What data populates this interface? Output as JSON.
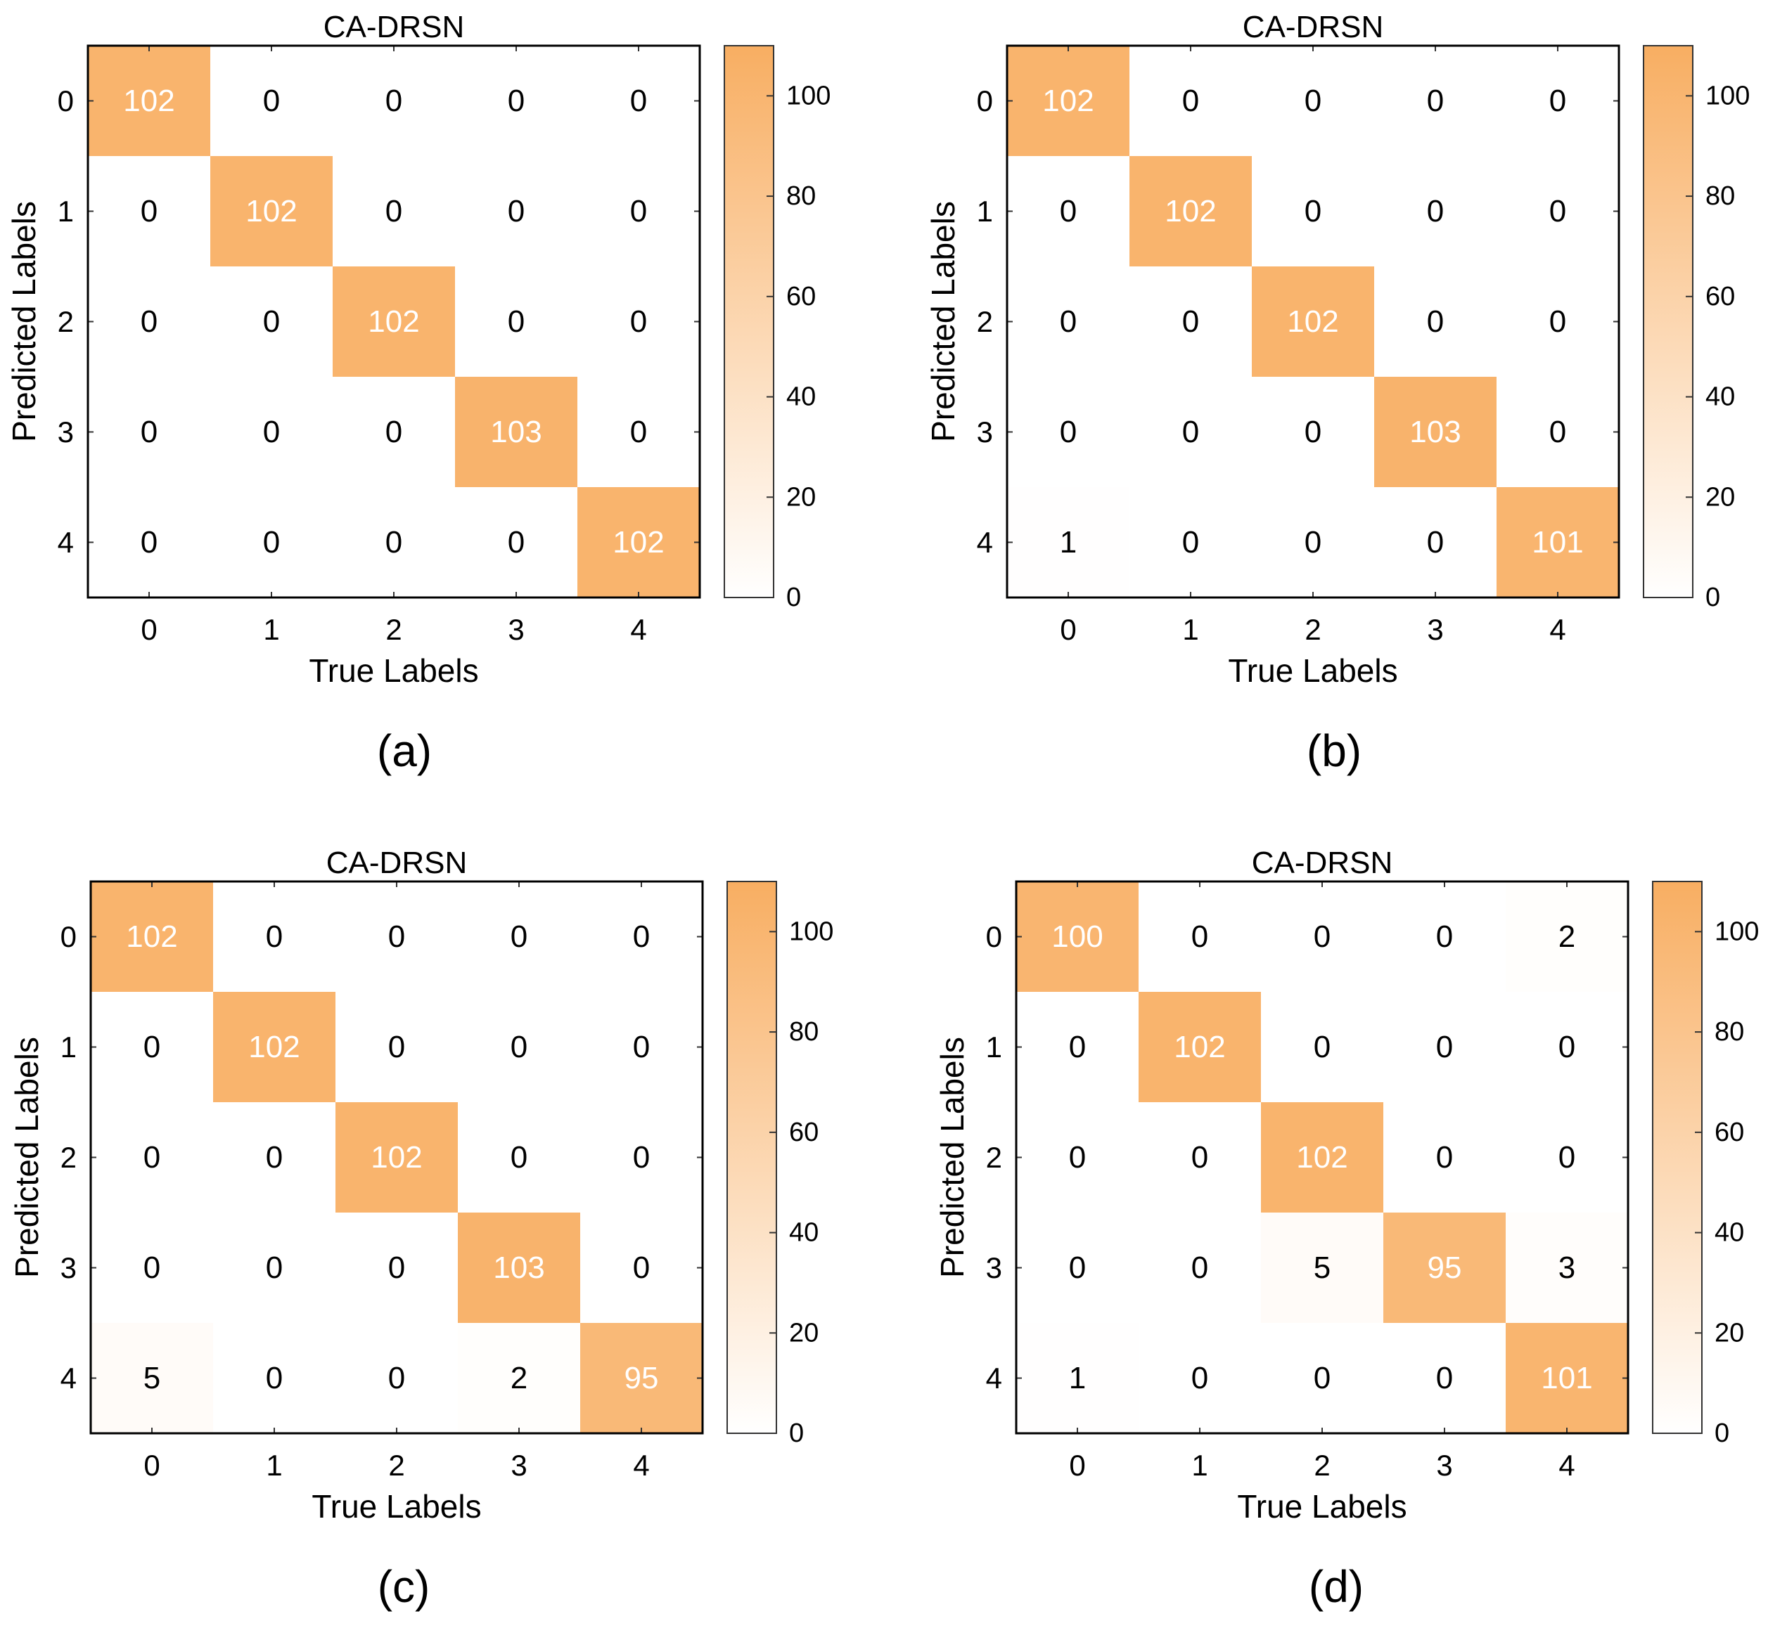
{
  "colors": {
    "low": "#ffffff",
    "high": "#f8ae62",
    "axis": "#000000",
    "tick": "#333333"
  },
  "chart_data": [
    {
      "type": "heatmap",
      "panel_label": "(a)",
      "title": "CA-DRSN",
      "xlabel": "True Labels",
      "ylabel": "Predicted Labels",
      "x_ticks": [
        "0",
        "1",
        "2",
        "3",
        "4"
      ],
      "y_ticks": [
        "0",
        "1",
        "2",
        "3",
        "4"
      ],
      "matrix": [
        [
          102,
          0,
          0,
          0,
          0
        ],
        [
          0,
          102,
          0,
          0,
          0
        ],
        [
          0,
          0,
          102,
          0,
          0
        ],
        [
          0,
          0,
          0,
          103,
          0
        ],
        [
          0,
          0,
          0,
          0,
          102
        ]
      ],
      "colorbar": {
        "min": 0,
        "max": 110,
        "ticks": [
          "0",
          "20",
          "40",
          "60",
          "80",
          "100"
        ]
      }
    },
    {
      "type": "heatmap",
      "panel_label": "(b)",
      "title": "CA-DRSN",
      "xlabel": "True Labels",
      "ylabel": "Predicted Labels",
      "x_ticks": [
        "0",
        "1",
        "2",
        "3",
        "4"
      ],
      "y_ticks": [
        "0",
        "1",
        "2",
        "3",
        "4"
      ],
      "matrix": [
        [
          102,
          0,
          0,
          0,
          0
        ],
        [
          0,
          102,
          0,
          0,
          0
        ],
        [
          0,
          0,
          102,
          0,
          0
        ],
        [
          0,
          0,
          0,
          103,
          0
        ],
        [
          1,
          0,
          0,
          0,
          101
        ]
      ],
      "colorbar": {
        "min": 0,
        "max": 110,
        "ticks": [
          "0",
          "20",
          "40",
          "60",
          "80",
          "100"
        ]
      }
    },
    {
      "type": "heatmap",
      "panel_label": "(c)",
      "title": "CA-DRSN",
      "xlabel": "True Labels",
      "ylabel": "Predicted Labels",
      "x_ticks": [
        "0",
        "1",
        "2",
        "3",
        "4"
      ],
      "y_ticks": [
        "0",
        "1",
        "2",
        "3",
        "4"
      ],
      "matrix": [
        [
          102,
          0,
          0,
          0,
          0
        ],
        [
          0,
          102,
          0,
          0,
          0
        ],
        [
          0,
          0,
          102,
          0,
          0
        ],
        [
          0,
          0,
          0,
          103,
          0
        ],
        [
          5,
          0,
          0,
          2,
          95
        ]
      ],
      "colorbar": {
        "min": 0,
        "max": 110,
        "ticks": [
          "0",
          "20",
          "40",
          "60",
          "80",
          "100"
        ]
      }
    },
    {
      "type": "heatmap",
      "panel_label": "(d)",
      "title": "CA-DRSN",
      "xlabel": "True Labels",
      "ylabel": "Predicted Labels",
      "x_ticks": [
        "0",
        "1",
        "2",
        "3",
        "4"
      ],
      "y_ticks": [
        "0",
        "1",
        "2",
        "3",
        "4"
      ],
      "matrix": [
        [
          100,
          0,
          0,
          0,
          2
        ],
        [
          0,
          102,
          0,
          0,
          0
        ],
        [
          0,
          0,
          102,
          0,
          0
        ],
        [
          0,
          0,
          5,
          95,
          3
        ],
        [
          1,
          0,
          0,
          0,
          101
        ]
      ],
      "colorbar": {
        "min": 0,
        "max": 110,
        "ticks": [
          "0",
          "20",
          "40",
          "60",
          "80",
          "100"
        ]
      }
    }
  ]
}
